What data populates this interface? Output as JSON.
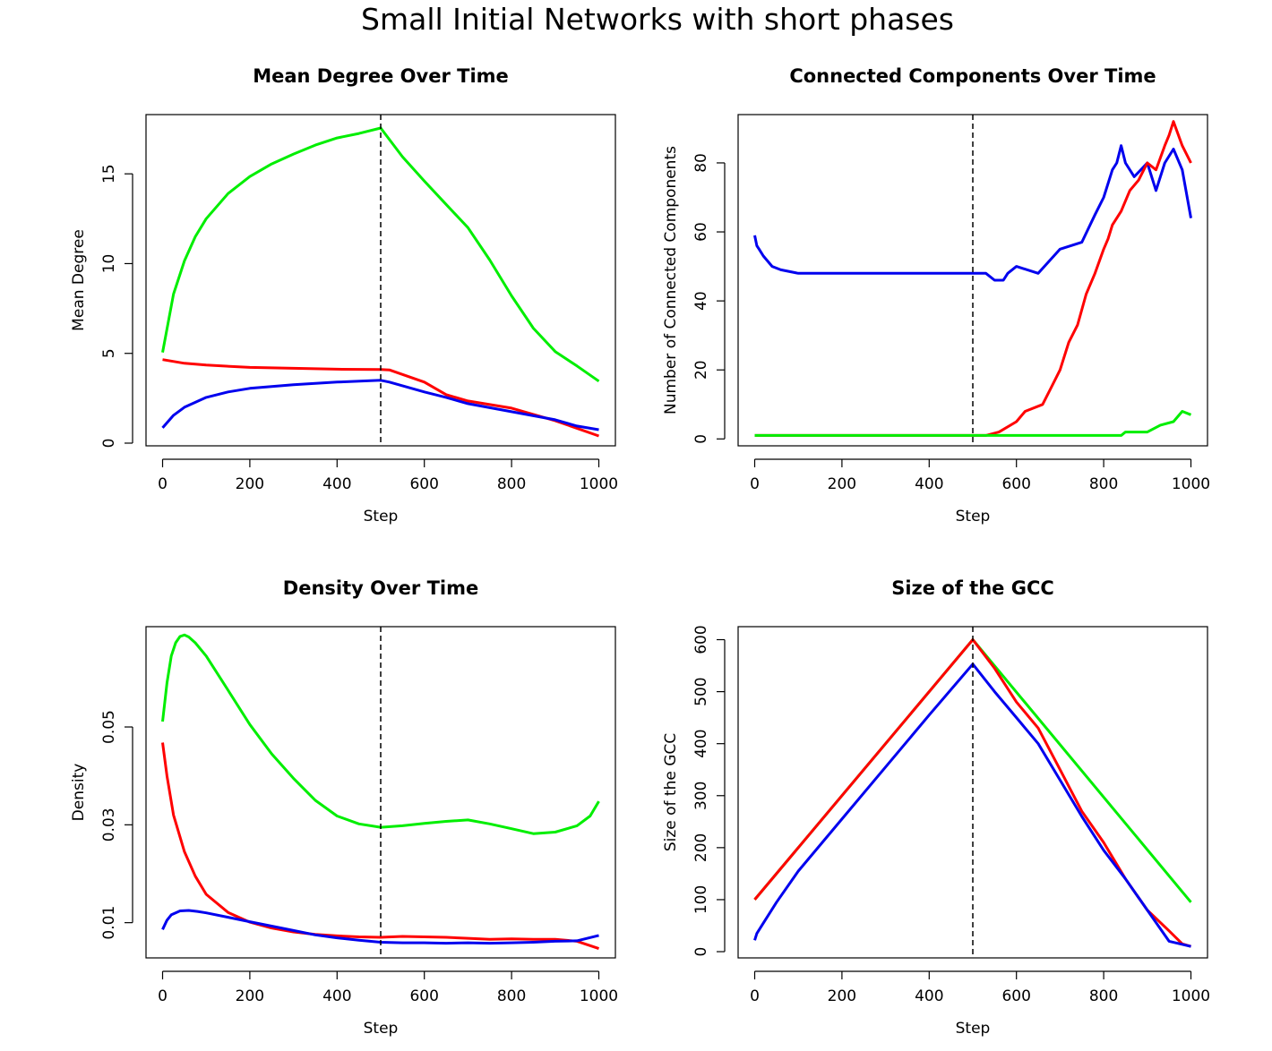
{
  "figure_title": "Small Initial Networks with short phases",
  "chart_data": [
    {
      "type": "line",
      "title": "Mean Degree Over Time",
      "xlabel": "Step",
      "ylabel": "Mean Degree",
      "xlim": [
        -38,
        1038
      ],
      "ylim": [
        -0.15,
        18.3
      ],
      "xticks": [
        0,
        200,
        400,
        600,
        800,
        1000
      ],
      "yticks": [
        0,
        5,
        10,
        15
      ],
      "vline": 500,
      "series": [
        {
          "color": "#00ee00",
          "x": [
            0,
            25,
            50,
            75,
            100,
            150,
            200,
            250,
            300,
            350,
            400,
            450,
            500,
            550,
            600,
            650,
            700,
            750,
            800,
            850,
            900,
            950,
            1000
          ],
          "y": [
            5.05,
            8.3,
            10.15,
            11.5,
            12.5,
            13.9,
            14.85,
            15.55,
            16.1,
            16.6,
            17.0,
            17.25,
            17.55,
            15.95,
            14.6,
            13.3,
            12.0,
            10.2,
            8.2,
            6.4,
            5.1,
            4.3,
            3.45
          ]
        },
        {
          "color": "#ff0000",
          "x": [
            0,
            50,
            100,
            200,
            300,
            400,
            500,
            520,
            600,
            650,
            700,
            800,
            900,
            1000
          ],
          "y": [
            4.65,
            4.45,
            4.35,
            4.22,
            4.17,
            4.12,
            4.1,
            4.08,
            3.4,
            2.7,
            2.35,
            1.95,
            1.25,
            0.4
          ]
        },
        {
          "color": "#0000ee",
          "x": [
            0,
            25,
            50,
            100,
            150,
            200,
            300,
            400,
            500,
            520,
            600,
            650,
            700,
            800,
            900,
            950,
            1000
          ],
          "y": [
            0.85,
            1.55,
            2.0,
            2.55,
            2.85,
            3.05,
            3.25,
            3.4,
            3.5,
            3.4,
            2.85,
            2.55,
            2.2,
            1.75,
            1.3,
            0.95,
            0.75
          ]
        }
      ]
    },
    {
      "type": "line",
      "title": "Connected Components Over Time",
      "xlabel": "Step",
      "ylabel": "Number of Connected Components",
      "xlim": [
        -38,
        1038
      ],
      "ylim": [
        -2,
        94
      ],
      "xticks": [
        0,
        200,
        400,
        600,
        800,
        1000
      ],
      "yticks": [
        0,
        20,
        40,
        60,
        80
      ],
      "vline": 500,
      "series": [
        {
          "color": "#0000ee",
          "x": [
            0,
            5,
            10,
            20,
            40,
            60,
            100,
            200,
            300,
            400,
            500,
            530,
            550,
            570,
            580,
            600,
            650,
            700,
            750,
            780,
            800,
            820,
            830,
            840,
            850,
            870,
            900,
            920,
            940,
            960,
            980,
            1000
          ],
          "y": [
            59,
            56,
            55,
            53,
            50,
            49,
            48,
            48,
            48,
            48,
            48,
            48,
            46,
            46,
            48,
            50,
            48,
            55,
            57,
            65,
            70,
            78,
            80,
            85,
            80,
            76,
            80,
            72,
            80,
            84,
            78,
            64
          ]
        },
        {
          "color": "#ff0000",
          "x": [
            0,
            500,
            530,
            560,
            600,
            620,
            660,
            680,
            700,
            720,
            740,
            760,
            780,
            800,
            810,
            820,
            840,
            860,
            880,
            900,
            920,
            940,
            950,
            960,
            980,
            1000
          ],
          "y": [
            1,
            1,
            1,
            2,
            5,
            8,
            10,
            15,
            20,
            28,
            33,
            42,
            48,
            55,
            58,
            62,
            66,
            72,
            75,
            80,
            78,
            85,
            88,
            92,
            85,
            80
          ]
        },
        {
          "color": "#00ee00",
          "x": [
            0,
            200,
            400,
            600,
            700,
            800,
            840,
            850,
            900,
            930,
            960,
            980,
            1000
          ],
          "y": [
            1,
            1,
            1,
            1,
            1,
            1,
            1,
            2,
            2,
            4,
            5,
            8,
            7
          ]
        }
      ]
    },
    {
      "type": "line",
      "title": "Density Over Time",
      "xlabel": "Step",
      "ylabel": "Density",
      "xlim": [
        -38,
        1038
      ],
      "ylim": [
        0.0028,
        0.0705
      ],
      "xticks": [
        0,
        200,
        400,
        600,
        800,
        1000
      ],
      "yticks": [
        0.01,
        0.03,
        0.05
      ],
      "vline": 500,
      "series": [
        {
          "color": "#00ee00",
          "x": [
            0,
            10,
            20,
            30,
            40,
            50,
            60,
            75,
            100,
            150,
            200,
            250,
            300,
            350,
            400,
            450,
            500,
            550,
            600,
            650,
            700,
            750,
            800,
            850,
            900,
            950,
            980,
            1000
          ],
          "y": [
            0.0511,
            0.059,
            0.0645,
            0.0672,
            0.0685,
            0.0688,
            0.0684,
            0.0672,
            0.0645,
            0.0575,
            0.0505,
            0.0445,
            0.0395,
            0.035,
            0.0318,
            0.0302,
            0.0295,
            0.0298,
            0.0303,
            0.0307,
            0.031,
            0.0302,
            0.0292,
            0.0282,
            0.0285,
            0.0298,
            0.0318,
            0.0348
          ]
        },
        {
          "color": "#ff0000",
          "x": [
            0,
            10,
            25,
            50,
            75,
            100,
            150,
            200,
            250,
            300,
            350,
            400,
            450,
            500,
            550,
            600,
            650,
            700,
            750,
            800,
            850,
            900,
            950,
            980,
            1000
          ],
          "y": [
            0.0468,
            0.04,
            0.032,
            0.0245,
            0.0195,
            0.0158,
            0.0121,
            0.0101,
            0.0089,
            0.0081,
            0.0076,
            0.0073,
            0.0071,
            0.007,
            0.0072,
            0.0071,
            0.007,
            0.0068,
            0.0066,
            0.0067,
            0.0066,
            0.0066,
            0.0062,
            0.0053,
            0.0047
          ]
        },
        {
          "color": "#0000ee",
          "x": [
            0,
            10,
            20,
            40,
            60,
            80,
            100,
            150,
            200,
            250,
            300,
            350,
            400,
            450,
            500,
            550,
            600,
            650,
            700,
            750,
            800,
            850,
            900,
            950,
            1000
          ],
          "y": [
            0.0086,
            0.0105,
            0.0116,
            0.0124,
            0.0125,
            0.0123,
            0.012,
            0.0111,
            0.0102,
            0.0093,
            0.0084,
            0.0075,
            0.0069,
            0.0064,
            0.006,
            0.0059,
            0.0059,
            0.0058,
            0.0059,
            0.0058,
            0.0059,
            0.006,
            0.0062,
            0.0063,
            0.0074
          ]
        }
      ]
    },
    {
      "type": "line",
      "title": "Size of the GCC",
      "xlabel": "Step",
      "ylabel": "Size of the GCC",
      "xlim": [
        -38,
        1038
      ],
      "ylim": [
        -12,
        625
      ],
      "xticks": [
        0,
        200,
        400,
        600,
        800,
        1000
      ],
      "yticks": [
        0,
        100,
        200,
        300,
        400,
        500,
        600
      ],
      "vline": 500,
      "series": [
        {
          "color": "#00ee00",
          "x": [
            0,
            500,
            1000
          ],
          "y": [
            100,
            600,
            95
          ]
        },
        {
          "color": "#ff0000",
          "x": [
            0,
            500,
            550,
            600,
            650,
            700,
            750,
            800,
            850,
            900,
            950,
            980,
            1000
          ],
          "y": [
            100,
            600,
            545,
            480,
            430,
            350,
            270,
            210,
            140,
            80,
            40,
            15,
            10
          ]
        },
        {
          "color": "#0000ee",
          "x": [
            0,
            5,
            20,
            50,
            100,
            200,
            300,
            400,
            500,
            550,
            600,
            650,
            700,
            750,
            800,
            850,
            900,
            950,
            1000
          ],
          "y": [
            22,
            35,
            55,
            95,
            155,
            255,
            355,
            455,
            553,
            500,
            450,
            400,
            330,
            260,
            195,
            140,
            80,
            20,
            10
          ]
        }
      ]
    }
  ]
}
